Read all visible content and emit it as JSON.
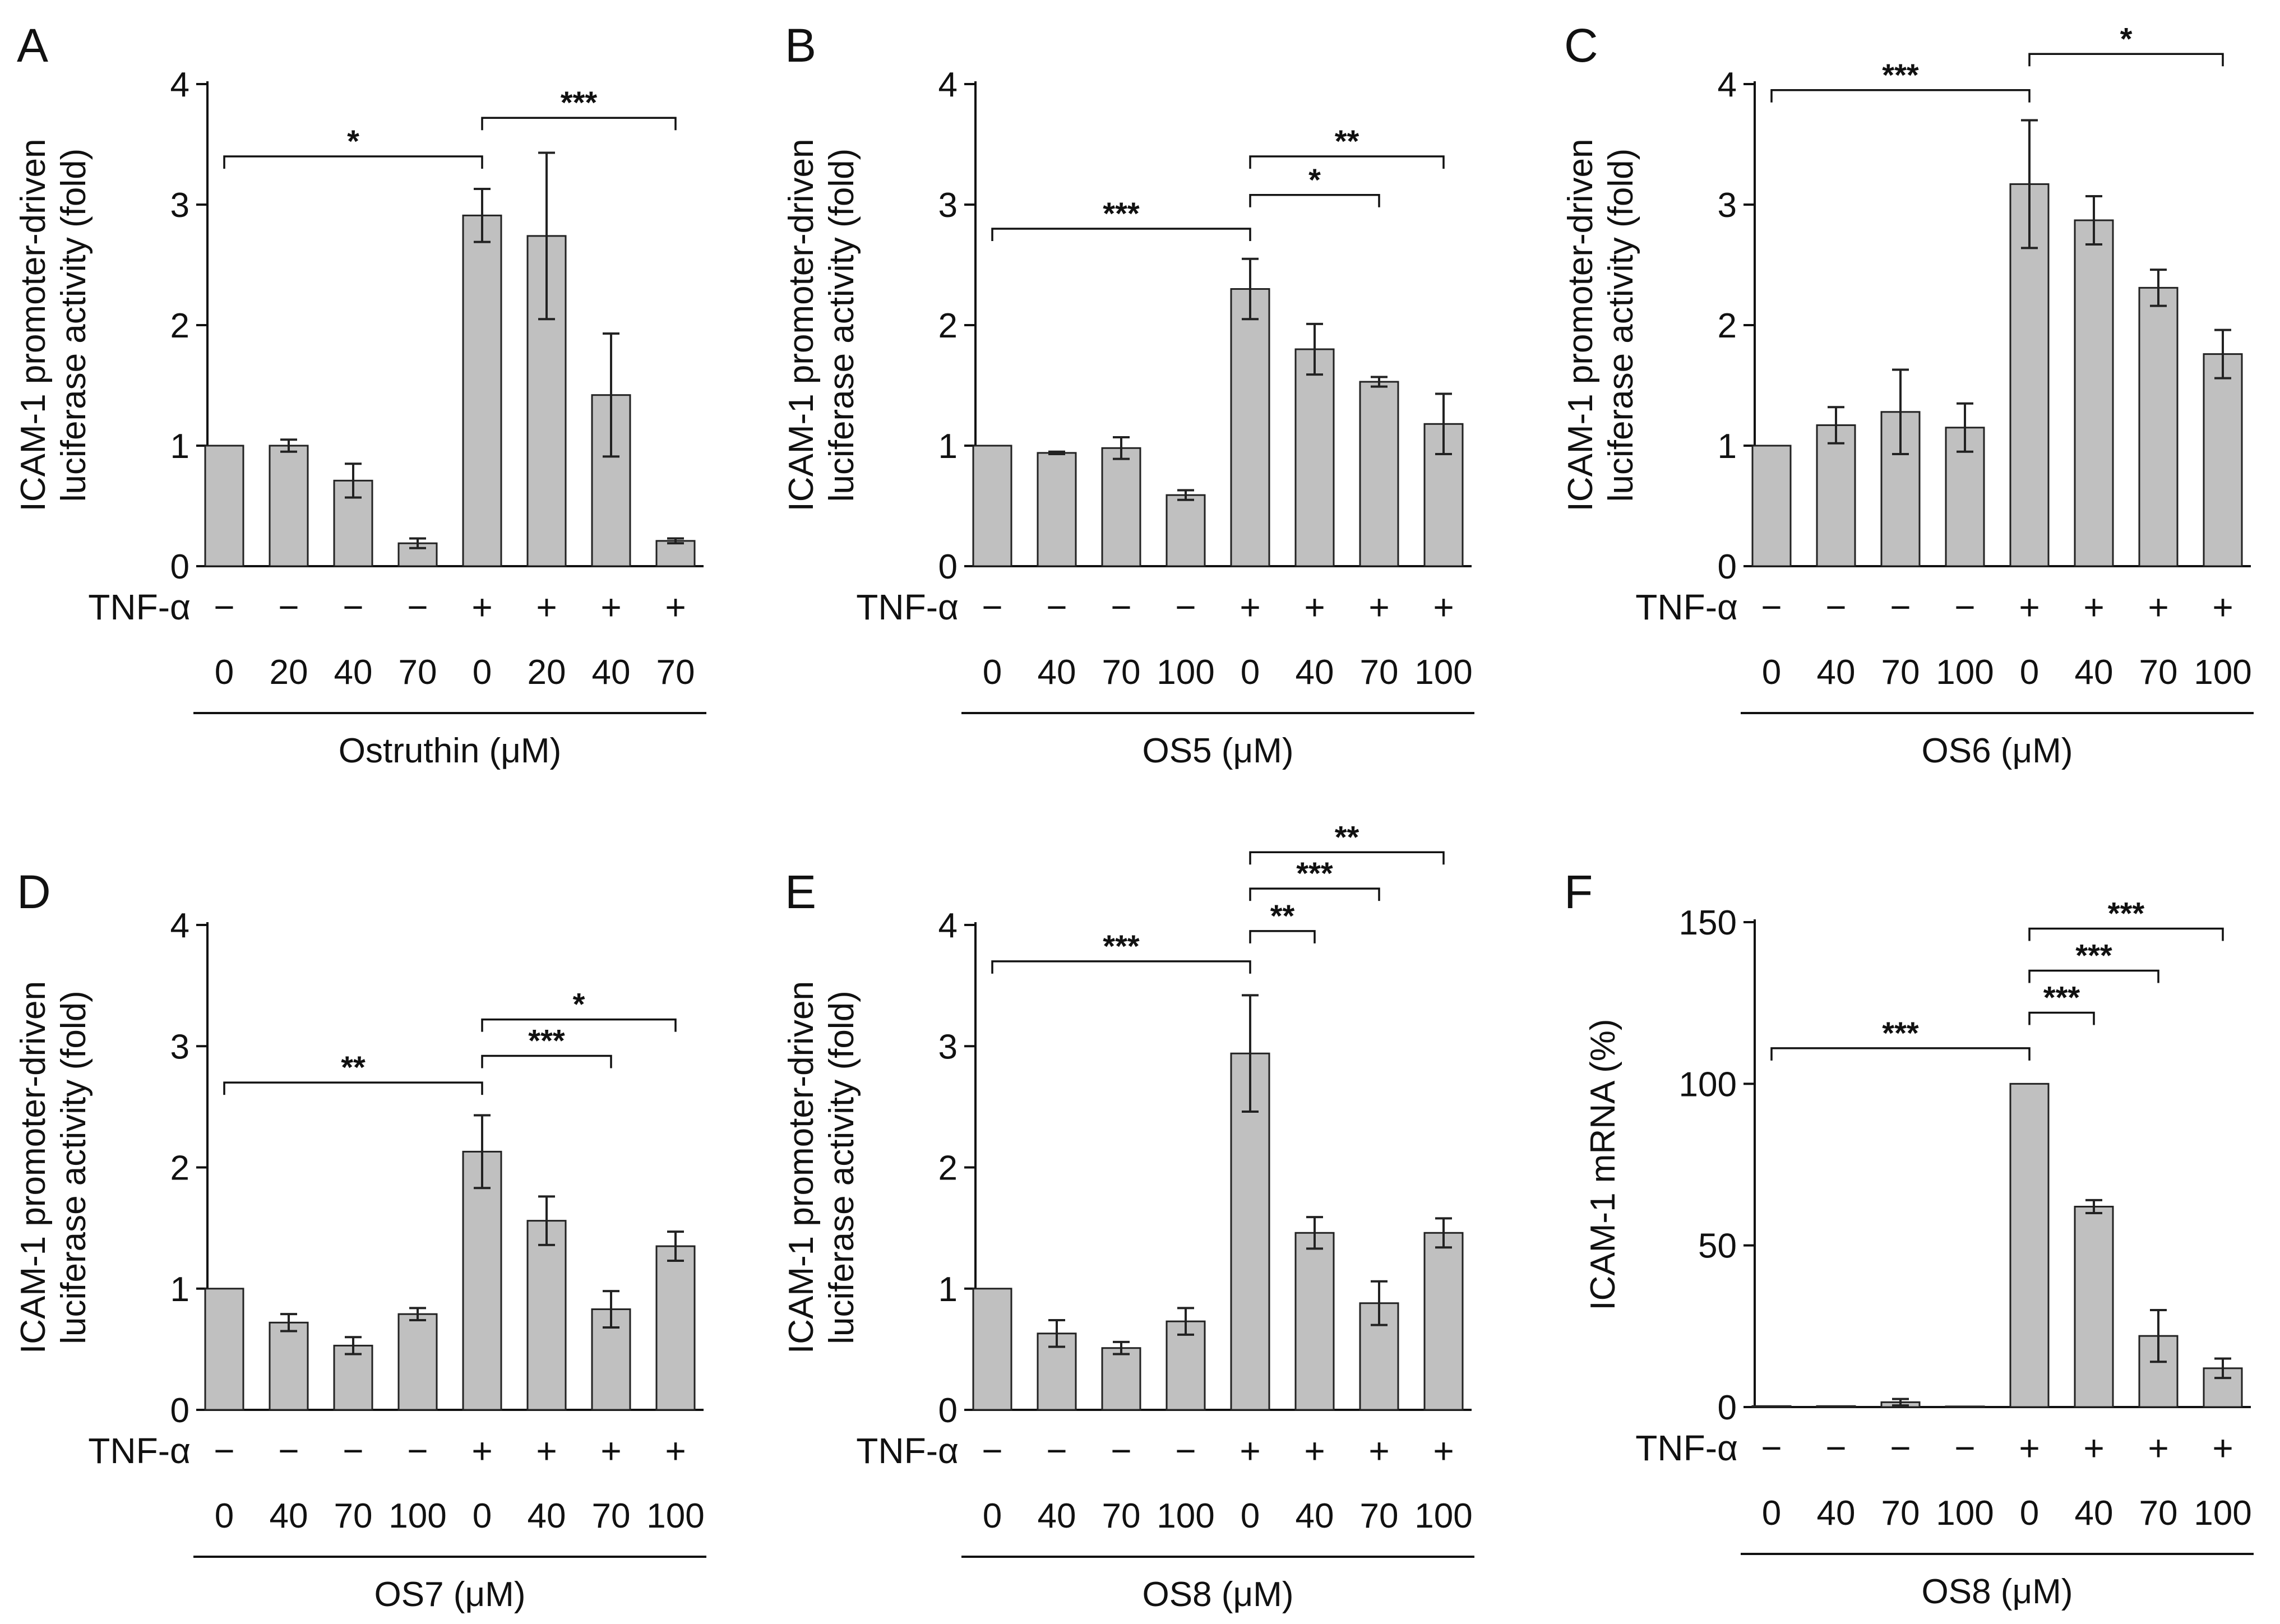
{
  "figure": {
    "background": "#ffffff",
    "bar_color": "#c0c0c0",
    "line_color": "#111111"
  },
  "chart_data": [
    {
      "panel": "A",
      "type": "bar",
      "ylabel": [
        "ICAM-1 promoter-driven",
        "luciferase activity (fold)"
      ],
      "ylim": [
        0,
        4
      ],
      "yticks": [
        0,
        1,
        2,
        3,
        4
      ],
      "treatment_label": "TNF-α",
      "tnf": [
        "−",
        "−",
        "−",
        "−",
        "+",
        "+",
        "+",
        "+"
      ],
      "categories": [
        "0",
        "20",
        "40",
        "70",
        "0",
        "20",
        "40",
        "70"
      ],
      "values": [
        1.0,
        1.0,
        0.71,
        0.19,
        2.91,
        2.74,
        1.42,
        0.21
      ],
      "errors": [
        0,
        0.05,
        0.14,
        0.04,
        0.22,
        0.69,
        0.51,
        0.02
      ],
      "group_label": "Ostruthin (μM)",
      "significance": [
        {
          "from": 0,
          "to": 4,
          "y": 3.4,
          "label": "*"
        },
        {
          "from": 4,
          "to": 7,
          "y": 3.72,
          "label": "***"
        }
      ]
    },
    {
      "panel": "B",
      "type": "bar",
      "ylabel": [
        "ICAM-1 promoter-driven",
        "luciferase activity (fold)"
      ],
      "ylim": [
        0,
        4
      ],
      "yticks": [
        0,
        1,
        2,
        3,
        4
      ],
      "treatment_label": "TNF-α",
      "tnf": [
        "−",
        "−",
        "−",
        "−",
        "+",
        "+",
        "+",
        "+"
      ],
      "categories": [
        "0",
        "40",
        "70",
        "100",
        "0",
        "40",
        "70",
        "100"
      ],
      "values": [
        1.0,
        0.94,
        0.98,
        0.59,
        2.3,
        1.8,
        1.53,
        1.18
      ],
      "errors": [
        0,
        0.01,
        0.09,
        0.04,
        0.25,
        0.21,
        0.04,
        0.25
      ],
      "group_label": "OS5 (μM)",
      "significance": [
        {
          "from": 0,
          "to": 4,
          "y": 2.8,
          "label": "***"
        },
        {
          "from": 4,
          "to": 6,
          "y": 3.08,
          "label": "*"
        },
        {
          "from": 4,
          "to": 7,
          "y": 3.4,
          "label": "**"
        }
      ]
    },
    {
      "panel": "C",
      "type": "bar",
      "ylabel": [
        "ICAM-1 promoter-driven",
        "luciferase activity (fold)"
      ],
      "ylim": [
        0,
        4
      ],
      "yticks": [
        0,
        1,
        2,
        3,
        4
      ],
      "treatment_label": "TNF-α",
      "tnf": [
        "−",
        "−",
        "−",
        "−",
        "+",
        "+",
        "+",
        "+"
      ],
      "categories": [
        "0",
        "40",
        "70",
        "100",
        "0",
        "40",
        "70",
        "100"
      ],
      "values": [
        1.0,
        1.17,
        1.28,
        1.15,
        3.17,
        2.87,
        2.31,
        1.76
      ],
      "errors": [
        0,
        0.15,
        0.35,
        0.2,
        0.53,
        0.2,
        0.15,
        0.2
      ],
      "group_label": "OS6 (μM)",
      "significance": [
        {
          "from": 0,
          "to": 4,
          "y": 3.95,
          "label": "***"
        },
        {
          "from": 4,
          "to": 7,
          "y": 4.25,
          "label": "*"
        }
      ]
    },
    {
      "panel": "D",
      "type": "bar",
      "ylabel": [
        "ICAM-1 promoter-driven",
        "luciferase activity (fold)"
      ],
      "ylim": [
        0,
        4
      ],
      "yticks": [
        0,
        1,
        2,
        3,
        4
      ],
      "treatment_label": "TNF-α",
      "tnf": [
        "−",
        "−",
        "−",
        "−",
        "+",
        "+",
        "+",
        "+"
      ],
      "categories": [
        "0",
        "40",
        "70",
        "100",
        "0",
        "40",
        "70",
        "100"
      ],
      "values": [
        1.0,
        0.72,
        0.53,
        0.79,
        2.13,
        1.56,
        0.83,
        1.35
      ],
      "errors": [
        0,
        0.07,
        0.07,
        0.05,
        0.3,
        0.2,
        0.15,
        0.12
      ],
      "group_label": "OS7 (μM)",
      "significance": [
        {
          "from": 0,
          "to": 4,
          "y": 2.7,
          "label": "**"
        },
        {
          "from": 4,
          "to": 6,
          "y": 2.92,
          "label": "***"
        },
        {
          "from": 4,
          "to": 7,
          "y": 3.22,
          "label": "*"
        }
      ]
    },
    {
      "panel": "E",
      "type": "bar",
      "ylabel": [
        "ICAM-1 promoter-driven",
        "luciferase activity (fold)"
      ],
      "ylim": [
        0,
        4
      ],
      "yticks": [
        0,
        1,
        2,
        3,
        4
      ],
      "treatment_label": "TNF-α",
      "tnf": [
        "−",
        "−",
        "−",
        "−",
        "+",
        "+",
        "+",
        "+"
      ],
      "categories": [
        "0",
        "40",
        "70",
        "100",
        "0",
        "40",
        "70",
        "100"
      ],
      "values": [
        1.0,
        0.63,
        0.51,
        0.73,
        2.94,
        1.46,
        0.88,
        1.46
      ],
      "errors": [
        0,
        0.11,
        0.05,
        0.11,
        0.48,
        0.13,
        0.18,
        0.12
      ],
      "group_label": "OS8 (μM)",
      "significance": [
        {
          "from": 0,
          "to": 4,
          "y": 3.7,
          "label": "***"
        },
        {
          "from": 4,
          "to": 5,
          "y": 3.95,
          "label": "**"
        },
        {
          "from": 4,
          "to": 6,
          "y": 4.3,
          "label": "***"
        },
        {
          "from": 4,
          "to": 7,
          "y": 4.6,
          "label": "**"
        }
      ]
    },
    {
      "panel": "F",
      "type": "bar",
      "ylabel": [
        "ICAM-1 mRNA  (%)"
      ],
      "ylim": [
        0,
        150
      ],
      "yticks": [
        0,
        50,
        100,
        150
      ],
      "treatment_label": "TNF-α",
      "tnf": [
        "−",
        "−",
        "−",
        "−",
        "+",
        "+",
        "+",
        "+"
      ],
      "categories": [
        "0",
        "40",
        "70",
        "100",
        "0",
        "40",
        "70",
        "100"
      ],
      "values": [
        0.3,
        0.3,
        1.5,
        0.2,
        100,
        62,
        22,
        12
      ],
      "errors": [
        0,
        0,
        1,
        0,
        0,
        2,
        8,
        3
      ],
      "group_label": "OS8 (μM)",
      "significance": [
        {
          "from": 0,
          "to": 4,
          "y": 111,
          "label": "***"
        },
        {
          "from": 4,
          "to": 5,
          "y": 122,
          "label": "***"
        },
        {
          "from": 4,
          "to": 6,
          "y": 135,
          "label": "***"
        },
        {
          "from": 4,
          "to": 7,
          "y": 148,
          "label": "***"
        }
      ]
    }
  ]
}
